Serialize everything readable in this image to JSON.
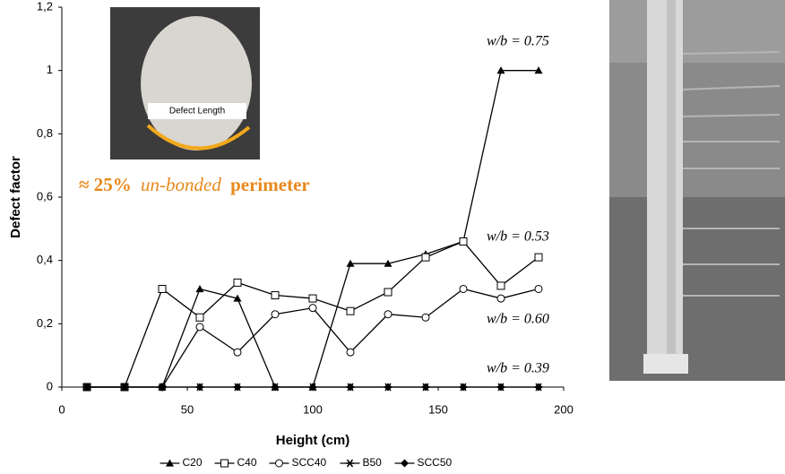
{
  "chart_data": {
    "type": "line",
    "x_label": "Height (cm)",
    "y_label": "Defect factor",
    "x": [
      10,
      25,
      40,
      55,
      70,
      85,
      100,
      115,
      130,
      145,
      160,
      175,
      190
    ],
    "series": [
      {
        "name": "C20",
        "color": "#000000",
        "marker": "triangle",
        "values": [
          0,
          0,
          0,
          0.31,
          0.28,
          0,
          0,
          0.39,
          0.39,
          0.42,
          0.46,
          1,
          1
        ]
      },
      {
        "name": "C40",
        "color": "#000000",
        "marker": "square",
        "values": [
          0,
          0,
          0.31,
          0.22,
          0.33,
          0.29,
          0.28,
          0.24,
          0.3,
          0.41,
          0.46,
          0.32,
          0.41
        ]
      },
      {
        "name": "SCC40",
        "color": "#000000",
        "marker": "circle",
        "values": [
          0,
          0,
          0,
          0.19,
          0.11,
          0.23,
          0.25,
          0.11,
          0.23,
          0.22,
          0.31,
          0.28,
          0.31
        ]
      },
      {
        "name": "B50",
        "color": "#000000",
        "marker": "asterisk",
        "values": [
          0,
          0,
          0,
          0,
          0,
          0,
          0,
          0,
          0,
          0,
          0,
          0,
          0
        ]
      },
      {
        "name": "SCC50",
        "color": "#000000",
        "marker": "diamond",
        "values": [
          0,
          0,
          0,
          0,
          0,
          0,
          0,
          0,
          0,
          0,
          0,
          0,
          0
        ]
      }
    ],
    "xlim": [
      0,
      200
    ],
    "xticks": [
      0,
      50,
      100,
      150,
      200
    ],
    "ylim": [
      0,
      1.2
    ],
    "yticks": [
      0,
      {
        "value": 0.2,
        "label": "0,2"
      },
      {
        "value": 0.4,
        "label": "0,4"
      },
      {
        "value": 0.6,
        "label": "0,6"
      },
      {
        "value": 0.8,
        "label": "0,8"
      },
      1,
      {
        "value": 1.2,
        "label": "1,2"
      }
    ],
    "annotations": [
      "w/b = 0.75",
      "w/b = 0.53",
      "w/b = 0.60",
      "w/b = 0.39"
    ],
    "inset_label": "Defect Length",
    "inset_caption": [
      "≈ 25%",
      "un-bonded",
      "perimeter"
    ],
    "legend": "bottom"
  }
}
